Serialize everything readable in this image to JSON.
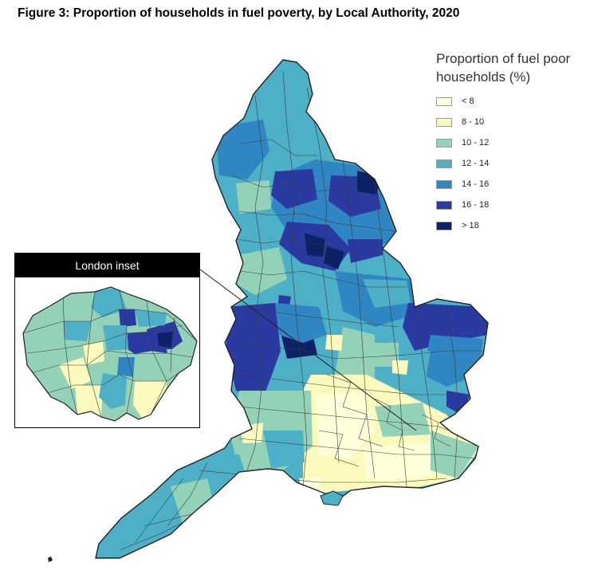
{
  "title": "Figure 3: Proportion of households in fuel poverty, by Local Authority, 2020",
  "legend": {
    "title_line1": "Proportion of fuel poor",
    "title_line2": "households (%)",
    "items": [
      {
        "label": "< 8",
        "color": "#ffffd9"
      },
      {
        "label": "8 - 10",
        "color": "#fbfabc"
      },
      {
        "label": "10 - 12",
        "color": "#93d2b7"
      },
      {
        "label": "12 - 14",
        "color": "#4eb0c7"
      },
      {
        "label": "14 - 16",
        "color": "#2f86c2"
      },
      {
        "label": "16 - 18",
        "color": "#2b3aa1"
      },
      {
        "label": "> 18",
        "color": "#0c2166"
      }
    ]
  },
  "inset": {
    "label": "London inset"
  }
}
